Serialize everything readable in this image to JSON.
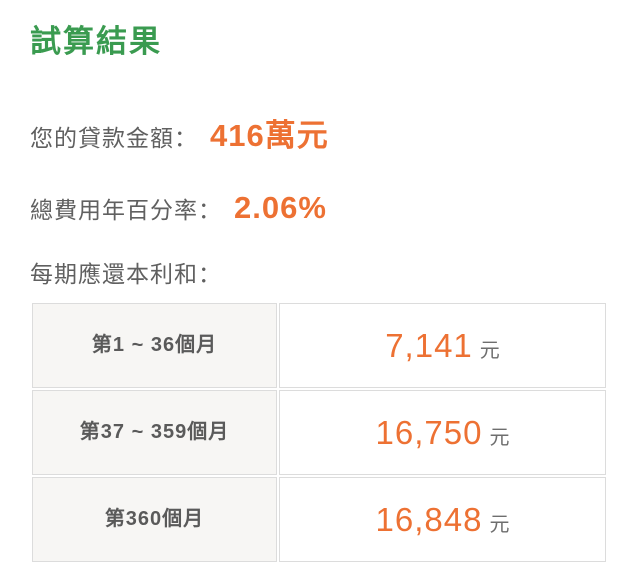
{
  "page": {
    "title": "試算結果"
  },
  "theme": {
    "title_green": "#3a9b50",
    "value_orange": "#ed7133",
    "label_gray": "#606060",
    "cell_label_gray": "#5a5a5a",
    "border_gray": "#dcdcdc",
    "period_cell_bg": "#f7f6f4"
  },
  "summary": {
    "loan_amount": {
      "label": "您的貸款金額：",
      "value": "416萬元"
    },
    "apr": {
      "label": "總費用年百分率：",
      "value": "2.06%"
    },
    "installment_label": "每期應還本利和："
  },
  "table": {
    "rows": [
      {
        "period": "第1 ~ 36個月",
        "amount": "7,141",
        "unit": "元"
      },
      {
        "period": "第37 ~ 359個月",
        "amount": "16,750",
        "unit": "元"
      },
      {
        "period": "第360個月",
        "amount": "16,848",
        "unit": "元"
      }
    ]
  }
}
